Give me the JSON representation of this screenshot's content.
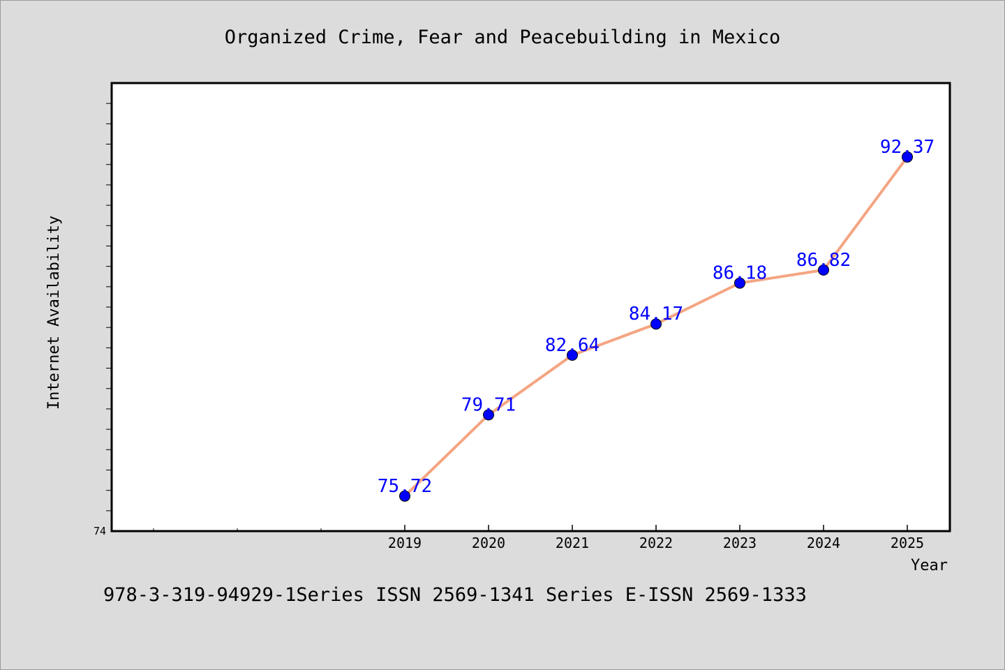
{
  "chart_data": {
    "type": "line",
    "title": "Organized Crime, Fear and Peacebuilding in Mexico",
    "xlabel": "Year",
    "ylabel": "Internet Availability",
    "x": [
      "2019",
      "2020",
      "2021",
      "2022",
      "2023",
      "2024",
      "2025"
    ],
    "series": [
      {
        "values": [
          75.72,
          79.71,
          82.64,
          84.17,
          86.18,
          86.82,
          92.37
        ]
      }
    ],
    "ylim": [
      74,
      96
    ],
    "y_tick_labels": [
      "74"
    ],
    "grid": false,
    "legend": "none",
    "colors": {
      "line": "#f4a582",
      "marker": "#0000ff",
      "label": "#0000ff",
      "background": "#dcdcdc",
      "plot_background": "#ffffff"
    }
  },
  "footer": "978-3-319-94929-1Series ISSN 2569-1341 Series E-ISSN 2569-1333"
}
